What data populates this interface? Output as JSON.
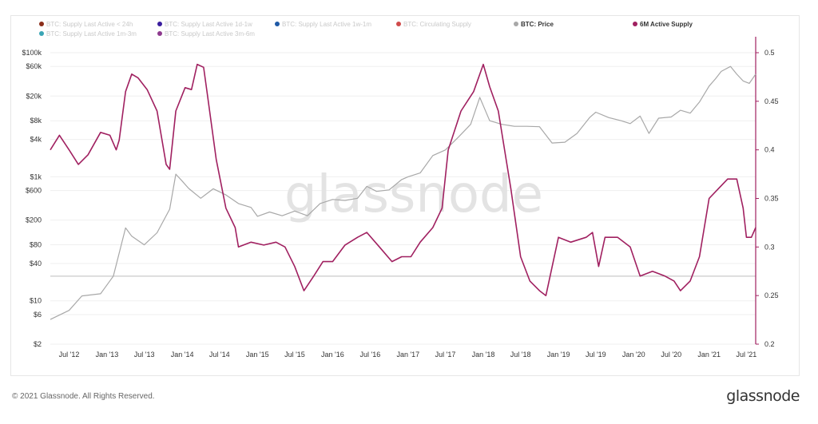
{
  "watermark": "glassnode",
  "footer": {
    "copyright": "© 2021 Glassnode. All Rights Reserved.",
    "logo": "glassnode"
  },
  "legend": [
    {
      "label": "BTC: Supply Last Active < 24h",
      "color": "#8b2e1a",
      "active": false
    },
    {
      "label": "BTC: Supply Last Active 1d-1w",
      "color": "#3a1d9e",
      "active": false
    },
    {
      "label": "BTC: Supply Last Active 1w-1m",
      "color": "#1f5aa6",
      "active": false
    },
    {
      "label": "BTC: Circulating Supply",
      "color": "#d04b4b",
      "active": false
    },
    {
      "label": "BTC: Price",
      "color": "#a8a8a8",
      "active": true
    },
    {
      "label": "6M Active Supply",
      "color": "#a02060",
      "active": true
    },
    {
      "label": "BTC: Supply Last Active 1m-3m",
      "color": "#3aa5b5",
      "active": false
    },
    {
      "label": "BTC: Supply Last Active 3m-6m",
      "color": "#8e3a8e",
      "active": false
    }
  ],
  "chart_data": {
    "type": "line",
    "x_ticks": [
      "Jul '12",
      "Jan '13",
      "Jul '13",
      "Jan '14",
      "Jul '14",
      "Jan '15",
      "Jul '15",
      "Jan '16",
      "Jul '16",
      "Jan '17",
      "Jul '17",
      "Jan '18",
      "Jul '18",
      "Jan '19",
      "Jul '19",
      "Jan '20",
      "Jul '20",
      "Jan '21",
      "Jul '21"
    ],
    "y_left_ticks": [
      "$100k",
      "$60k",
      "$20k",
      "$8k",
      "$4k",
      "$1k",
      "$600",
      "$200",
      "$80",
      "$40",
      "$10",
      "$6",
      "$2"
    ],
    "y_right_ticks": [
      "0.5",
      "0.45",
      "0.4",
      "0.35",
      "0.3",
      "0.25",
      "0.2"
    ],
    "y_left_scale": "log",
    "y_left_range": [
      2,
      100000
    ],
    "y_right_range": [
      0.2,
      0.5
    ],
    "x_range": [
      "2012-04-01",
      "2021-08-15"
    ],
    "reference_line_right": 0.27,
    "series": [
      {
        "name": "BTC: Price",
        "color": "#a8a8a8",
        "axis": "left",
        "points": [
          [
            "2012-04-01",
            5
          ],
          [
            "2012-07-01",
            7
          ],
          [
            "2012-09-01",
            12
          ],
          [
            "2012-12-01",
            13
          ],
          [
            "2013-02-01",
            25
          ],
          [
            "2013-04-01",
            150
          ],
          [
            "2013-05-01",
            110
          ],
          [
            "2013-07-01",
            80
          ],
          [
            "2013-09-01",
            125
          ],
          [
            "2013-11-01",
            300
          ],
          [
            "2013-12-01",
            1100
          ],
          [
            "2014-01-01",
            850
          ],
          [
            "2014-02-01",
            650
          ],
          [
            "2014-04-01",
            450
          ],
          [
            "2014-06-01",
            640
          ],
          [
            "2014-08-01",
            510
          ],
          [
            "2014-10-01",
            370
          ],
          [
            "2014-12-01",
            320
          ],
          [
            "2015-01-01",
            230
          ],
          [
            "2015-03-01",
            270
          ],
          [
            "2015-05-01",
            235
          ],
          [
            "2015-07-01",
            280
          ],
          [
            "2015-09-01",
            235
          ],
          [
            "2015-11-01",
            370
          ],
          [
            "2016-01-01",
            430
          ],
          [
            "2016-03-01",
            415
          ],
          [
            "2016-05-01",
            450
          ],
          [
            "2016-06-15",
            700
          ],
          [
            "2016-08-01",
            580
          ],
          [
            "2016-10-01",
            615
          ],
          [
            "2016-12-01",
            900
          ],
          [
            "2017-01-01",
            1000
          ],
          [
            "2017-03-01",
            1150
          ],
          [
            "2017-05-01",
            2200
          ],
          [
            "2017-07-01",
            2700
          ],
          [
            "2017-09-01",
            4300
          ],
          [
            "2017-11-01",
            7000
          ],
          [
            "2017-12-15",
            19000
          ],
          [
            "2018-01-01",
            14000
          ],
          [
            "2018-02-01",
            8000
          ],
          [
            "2018-04-01",
            7000
          ],
          [
            "2018-06-01",
            6500
          ],
          [
            "2018-08-01",
            6500
          ],
          [
            "2018-10-01",
            6400
          ],
          [
            "2018-12-01",
            3500
          ],
          [
            "2019-02-01",
            3600
          ],
          [
            "2019-04-01",
            5000
          ],
          [
            "2019-06-01",
            9000
          ],
          [
            "2019-07-01",
            11000
          ],
          [
            "2019-09-01",
            9000
          ],
          [
            "2019-11-01",
            8000
          ],
          [
            "2019-12-15",
            7200
          ],
          [
            "2020-02-01",
            9500
          ],
          [
            "2020-03-15",
            5000
          ],
          [
            "2020-05-01",
            8800
          ],
          [
            "2020-07-01",
            9200
          ],
          [
            "2020-08-15",
            11800
          ],
          [
            "2020-10-01",
            10600
          ],
          [
            "2020-11-15",
            16000
          ],
          [
            "2021-01-01",
            29000
          ],
          [
            "2021-02-01",
            38000
          ],
          [
            "2021-03-01",
            50000
          ],
          [
            "2021-04-15",
            60000
          ],
          [
            "2021-05-15",
            45000
          ],
          [
            "2021-06-15",
            35000
          ],
          [
            "2021-07-15",
            32000
          ],
          [
            "2021-08-15",
            45000
          ]
        ]
      },
      {
        "name": "6M Active Supply",
        "color": "#a02060",
        "axis": "right",
        "points": [
          [
            "2012-04-01",
            0.4
          ],
          [
            "2012-05-15",
            0.415
          ],
          [
            "2012-07-01",
            0.4
          ],
          [
            "2012-08-15",
            0.385
          ],
          [
            "2012-10-01",
            0.395
          ],
          [
            "2012-12-01",
            0.418
          ],
          [
            "2013-01-15",
            0.415
          ],
          [
            "2013-02-15",
            0.4
          ],
          [
            "2013-03-01",
            0.41
          ],
          [
            "2013-04-01",
            0.46
          ],
          [
            "2013-05-01",
            0.478
          ],
          [
            "2013-06-01",
            0.474
          ],
          [
            "2013-07-15",
            0.462
          ],
          [
            "2013-09-01",
            0.44
          ],
          [
            "2013-10-15",
            0.385
          ],
          [
            "2013-11-01",
            0.38
          ],
          [
            "2013-12-01",
            0.44
          ],
          [
            "2014-01-15",
            0.464
          ],
          [
            "2014-02-15",
            0.462
          ],
          [
            "2014-03-15",
            0.488
          ],
          [
            "2014-04-15",
            0.485
          ],
          [
            "2014-05-01",
            0.46
          ],
          [
            "2014-06-15",
            0.39
          ],
          [
            "2014-08-01",
            0.34
          ],
          [
            "2014-09-15",
            0.32
          ],
          [
            "2014-10-01",
            0.3
          ],
          [
            "2014-12-01",
            0.305
          ],
          [
            "2015-02-01",
            0.302
          ],
          [
            "2015-04-01",
            0.305
          ],
          [
            "2015-05-15",
            0.3
          ],
          [
            "2015-07-01",
            0.28
          ],
          [
            "2015-08-15",
            0.255
          ],
          [
            "2015-10-01",
            0.27
          ],
          [
            "2015-11-15",
            0.285
          ],
          [
            "2016-01-01",
            0.285
          ],
          [
            "2016-03-01",
            0.302
          ],
          [
            "2016-05-01",
            0.31
          ],
          [
            "2016-06-15",
            0.315
          ],
          [
            "2016-08-15",
            0.3
          ],
          [
            "2016-10-15",
            0.285
          ],
          [
            "2016-12-01",
            0.29
          ],
          [
            "2017-01-15",
            0.29
          ],
          [
            "2017-03-01",
            0.305
          ],
          [
            "2017-05-01",
            0.32
          ],
          [
            "2017-06-15",
            0.34
          ],
          [
            "2017-07-15",
            0.4
          ],
          [
            "2017-09-15",
            0.44
          ],
          [
            "2017-11-15",
            0.46
          ],
          [
            "2018-01-01",
            0.488
          ],
          [
            "2018-02-01",
            0.465
          ],
          [
            "2018-03-15",
            0.44
          ],
          [
            "2018-05-15",
            0.36
          ],
          [
            "2018-07-01",
            0.29
          ],
          [
            "2018-08-15",
            0.265
          ],
          [
            "2018-10-01",
            0.255
          ],
          [
            "2018-11-01",
            0.25
          ],
          [
            "2019-01-01",
            0.31
          ],
          [
            "2019-03-01",
            0.305
          ],
          [
            "2019-05-15",
            0.31
          ],
          [
            "2019-06-15",
            0.315
          ],
          [
            "2019-07-15",
            0.28
          ],
          [
            "2019-08-15",
            0.31
          ],
          [
            "2019-10-15",
            0.31
          ],
          [
            "2019-12-15",
            0.3
          ],
          [
            "2020-02-01",
            0.27
          ],
          [
            "2020-04-01",
            0.275
          ],
          [
            "2020-06-01",
            0.27
          ],
          [
            "2020-07-15",
            0.265
          ],
          [
            "2020-08-15",
            0.255
          ],
          [
            "2020-10-01",
            0.265
          ],
          [
            "2020-11-15",
            0.29
          ],
          [
            "2021-01-01",
            0.35
          ],
          [
            "2021-02-15",
            0.36
          ],
          [
            "2021-04-01",
            0.37
          ],
          [
            "2021-05-15",
            0.37
          ],
          [
            "2021-06-15",
            0.34
          ],
          [
            "2021-07-01",
            0.31
          ],
          [
            "2021-07-25",
            0.31
          ],
          [
            "2021-08-15",
            0.32
          ]
        ]
      }
    ]
  }
}
